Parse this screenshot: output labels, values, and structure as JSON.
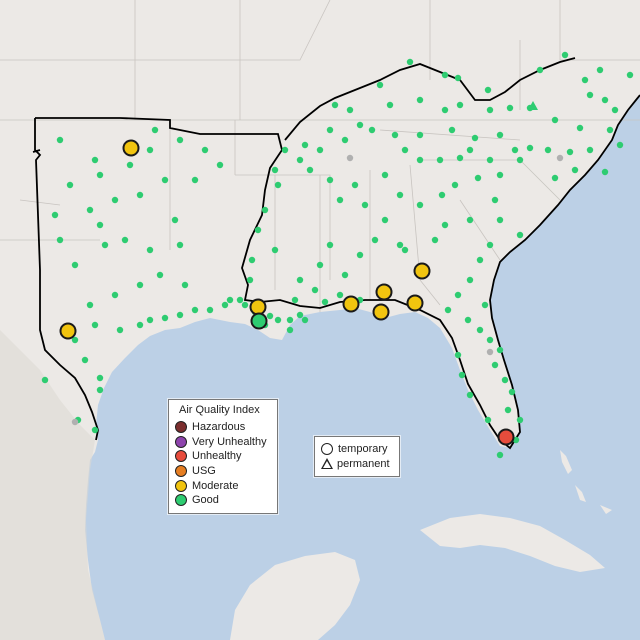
{
  "colors": {
    "water": "#bcd0e6",
    "land": "#ece9e6",
    "state_border": "#c8c4c0",
    "region_outline": "#000000",
    "hazardous": "#7b2e2e",
    "very_unhealthy": "#8e44ad",
    "unhealthy": "#e74c3c",
    "usg": "#e67e22",
    "moderate": "#f1c40f",
    "good": "#2ecc71",
    "no_data": "#b0b0b0"
  },
  "legend": {
    "title": "Air Quality Index",
    "categories": [
      {
        "label": "Hazardous",
        "color_key": "hazardous"
      },
      {
        "label": "Very Unhealthy",
        "color_key": "very_unhealthy"
      },
      {
        "label": "Unhealthy",
        "color_key": "unhealthy"
      },
      {
        "label": "USG",
        "color_key": "usg"
      },
      {
        "label": "Moderate",
        "color_key": "moderate"
      },
      {
        "label": "Good",
        "color_key": "good"
      }
    ]
  },
  "type_legend": {
    "temporary": "temporary",
    "permanent": "permanent"
  },
  "monitors": {
    "highlighted": [
      {
        "name": "moderate-oklahoma",
        "level": "moderate"
      },
      {
        "name": "moderate-west-texas",
        "level": "moderate"
      },
      {
        "name": "moderate-lake-charles",
        "level": "moderate"
      },
      {
        "name": "good-louisiana",
        "level": "good"
      },
      {
        "name": "moderate-mobile",
        "level": "moderate"
      },
      {
        "name": "moderate-pensacola-north",
        "level": "moderate"
      },
      {
        "name": "moderate-pensacola",
        "level": "moderate"
      },
      {
        "name": "moderate-panhandle",
        "level": "moderate"
      },
      {
        "name": "moderate-georgia",
        "level": "moderate"
      },
      {
        "name": "unhealthy-miami",
        "level": "unhealthy"
      }
    ]
  }
}
